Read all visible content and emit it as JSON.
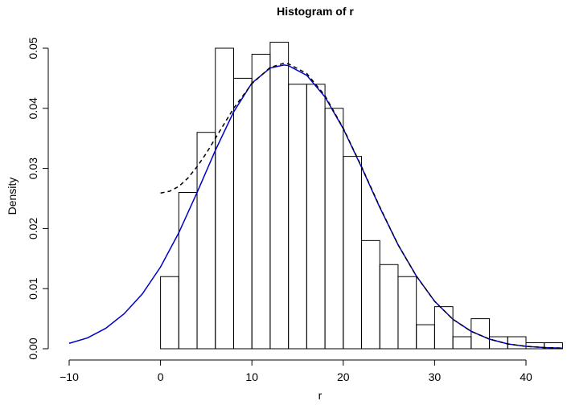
{
  "chart_data": {
    "type": "bar",
    "title": "Histogram of r",
    "xlabel": "r",
    "ylabel": "Density",
    "xlim": [
      -10,
      45
    ],
    "ylim": [
      0,
      0.052
    ],
    "x_ticks": [
      -10,
      0,
      10,
      20,
      30,
      40
    ],
    "x_tick_labels": [
      "−10",
      "0",
      "10",
      "20",
      "30",
      "40"
    ],
    "y_ticks": [
      0.0,
      0.01,
      0.02,
      0.03,
      0.04,
      0.05
    ],
    "y_tick_labels": [
      "0.00",
      "0.01",
      "0.02",
      "0.03",
      "0.04",
      "0.05"
    ],
    "grid": false,
    "bin_width": 2,
    "bins": [
      {
        "x0": 0,
        "x1": 2,
        "density": 0.012
      },
      {
        "x0": 2,
        "x1": 4,
        "density": 0.026
      },
      {
        "x0": 4,
        "x1": 6,
        "density": 0.036
      },
      {
        "x0": 6,
        "x1": 8,
        "density": 0.05
      },
      {
        "x0": 8,
        "x1": 10,
        "density": 0.045
      },
      {
        "x0": 10,
        "x1": 12,
        "density": 0.049
      },
      {
        "x0": 12,
        "x1": 14,
        "density": 0.051
      },
      {
        "x0": 14,
        "x1": 16,
        "density": 0.044
      },
      {
        "x0": 16,
        "x1": 18,
        "density": 0.044
      },
      {
        "x0": 18,
        "x1": 20,
        "density": 0.04
      },
      {
        "x0": 20,
        "x1": 22,
        "density": 0.032
      },
      {
        "x0": 22,
        "x1": 24,
        "density": 0.018
      },
      {
        "x0": 24,
        "x1": 26,
        "density": 0.014
      },
      {
        "x0": 26,
        "x1": 28,
        "density": 0.012
      },
      {
        "x0": 28,
        "x1": 30,
        "density": 0.004
      },
      {
        "x0": 30,
        "x1": 32,
        "density": 0.007
      },
      {
        "x0": 32,
        "x1": 34,
        "density": 0.002
      },
      {
        "x0": 34,
        "x1": 36,
        "density": 0.005
      },
      {
        "x0": 36,
        "x1": 38,
        "density": 0.002
      },
      {
        "x0": 38,
        "x1": 40,
        "density": 0.002
      },
      {
        "x0": 40,
        "x1": 42,
        "density": 0.001
      },
      {
        "x0": 42,
        "x1": 44,
        "density": 0.001
      }
    ],
    "curves": [
      {
        "style": "solid",
        "color": "#0000cc",
        "x": [
          -10,
          -8,
          -6,
          -4,
          -2,
          0,
          2,
          4,
          6,
          8,
          10,
          12,
          13.5,
          14,
          16,
          18,
          20,
          22,
          24,
          26,
          28,
          30,
          32,
          34,
          36,
          38,
          40,
          42,
          44
        ],
        "y": [
          0.0009,
          0.0018,
          0.0034,
          0.0058,
          0.0091,
          0.0136,
          0.0193,
          0.026,
          0.033,
          0.0394,
          0.0442,
          0.0467,
          0.0472,
          0.0471,
          0.0455,
          0.0419,
          0.0366,
          0.0302,
          0.0235,
          0.0173,
          0.0121,
          0.0079,
          0.0049,
          0.0029,
          0.0016,
          0.0008,
          0.0004,
          0.0002,
          0.0001
        ]
      },
      {
        "style": "dashed",
        "color": "#000000",
        "x": [
          0,
          1,
          2,
          3,
          4,
          5,
          6,
          8,
          10,
          12,
          13.5,
          14,
          16,
          18,
          20,
          22,
          24,
          26,
          28,
          30,
          32,
          34,
          36,
          38,
          40,
          42,
          44
        ],
        "y": [
          0.0259,
          0.0262,
          0.027,
          0.0284,
          0.0303,
          0.0325,
          0.035,
          0.04,
          0.0441,
          0.0468,
          0.0475,
          0.0474,
          0.0458,
          0.0421,
          0.0367,
          0.0303,
          0.0236,
          0.0173,
          0.0121,
          0.0079,
          0.0049,
          0.0029,
          0.0016,
          0.0008,
          0.0004,
          0.0002,
          0.0001
        ]
      }
    ]
  }
}
